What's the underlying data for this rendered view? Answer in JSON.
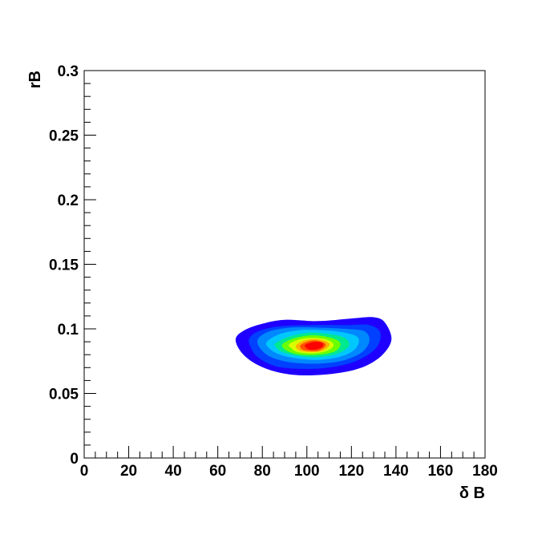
{
  "chart_data": {
    "type": "contour",
    "title": "",
    "xlabel": "δ B",
    "ylabel": "rB",
    "xlim": [
      0,
      180
    ],
    "ylim": [
      0,
      0.3
    ],
    "x_ticks": [
      0,
      20,
      40,
      60,
      80,
      100,
      120,
      140,
      160,
      180
    ],
    "x_tick_labels": [
      "0",
      "20",
      "40",
      "60",
      "80",
      "100",
      "120",
      "140",
      "160",
      "180"
    ],
    "y_ticks": [
      0,
      0.05,
      0.1,
      0.15,
      0.2,
      0.25,
      0.3
    ],
    "y_tick_labels": [
      "0",
      "0.05",
      "0.1",
      "0.15",
      "0.2",
      "0.25",
      "0.3"
    ],
    "grid": false,
    "peak": {
      "x": 103,
      "y": 0.087
    },
    "levels": [
      {
        "color": "#1f00ff",
        "outline": [
          [
            68,
            0.092
          ],
          [
            72,
            0.099
          ],
          [
            80,
            0.104
          ],
          [
            90,
            0.107
          ],
          [
            105,
            0.106
          ],
          [
            120,
            0.108
          ],
          [
            130,
            0.109
          ],
          [
            135,
            0.105
          ],
          [
            138,
            0.092
          ],
          [
            134,
            0.08
          ],
          [
            126,
            0.071
          ],
          [
            115,
            0.066
          ],
          [
            100,
            0.064
          ],
          [
            88,
            0.066
          ],
          [
            78,
            0.072
          ],
          [
            71,
            0.081
          ]
        ]
      },
      {
        "color": "#0040ff",
        "outline": [
          [
            74,
            0.092
          ],
          [
            78,
            0.098
          ],
          [
            88,
            0.102
          ],
          [
            103,
            0.103
          ],
          [
            118,
            0.103
          ],
          [
            128,
            0.103
          ],
          [
            133,
            0.097
          ],
          [
            131,
            0.085
          ],
          [
            122,
            0.075
          ],
          [
            110,
            0.07
          ],
          [
            98,
            0.069
          ],
          [
            86,
            0.071
          ],
          [
            78,
            0.078
          ],
          [
            75,
            0.085
          ]
        ]
      },
      {
        "color": "#0088ff",
        "outline": [
          [
            78,
            0.092
          ],
          [
            83,
            0.098
          ],
          [
            93,
            0.101
          ],
          [
            104,
            0.101
          ],
          [
            117,
            0.1
          ],
          [
            126,
            0.098
          ],
          [
            128,
            0.09
          ],
          [
            124,
            0.081
          ],
          [
            115,
            0.075
          ],
          [
            104,
            0.073
          ],
          [
            93,
            0.074
          ],
          [
            84,
            0.078
          ],
          [
            79,
            0.085
          ]
        ]
      },
      {
        "color": "#00c8ff",
        "outline": [
          [
            82,
            0.09
          ],
          [
            88,
            0.096
          ],
          [
            97,
            0.099
          ],
          [
            107,
            0.099
          ],
          [
            117,
            0.097
          ],
          [
            123,
            0.093
          ],
          [
            122,
            0.085
          ],
          [
            116,
            0.079
          ],
          [
            106,
            0.076
          ],
          [
            96,
            0.077
          ],
          [
            88,
            0.08
          ],
          [
            83,
            0.085
          ]
        ]
      },
      {
        "color": "#00e890",
        "outline": [
          [
            86,
            0.089
          ],
          [
            92,
            0.094
          ],
          [
            101,
            0.097
          ],
          [
            110,
            0.096
          ],
          [
            117,
            0.093
          ],
          [
            119,
            0.087
          ],
          [
            114,
            0.081
          ],
          [
            105,
            0.078
          ],
          [
            96,
            0.079
          ],
          [
            89,
            0.082
          ],
          [
            86,
            0.086
          ]
        ]
      },
      {
        "color": "#6aff00",
        "outline": [
          [
            89,
            0.088
          ],
          [
            95,
            0.093
          ],
          [
            103,
            0.095
          ],
          [
            111,
            0.093
          ],
          [
            115,
            0.089
          ],
          [
            113,
            0.083
          ],
          [
            106,
            0.08
          ],
          [
            97,
            0.08
          ],
          [
            91,
            0.083
          ]
        ]
      },
      {
        "color": "#d8ff00",
        "outline": [
          [
            92,
            0.088
          ],
          [
            97,
            0.092
          ],
          [
            104,
            0.093
          ],
          [
            110,
            0.091
          ],
          [
            112,
            0.087
          ],
          [
            109,
            0.083
          ],
          [
            103,
            0.081
          ],
          [
            96,
            0.082
          ],
          [
            93,
            0.085
          ]
        ]
      },
      {
        "color": "#ffb000",
        "outline": [
          [
            95,
            0.087
          ],
          [
            99,
            0.091
          ],
          [
            104,
            0.092
          ],
          [
            109,
            0.09
          ],
          [
            110,
            0.087
          ],
          [
            107,
            0.083
          ],
          [
            102,
            0.082
          ],
          [
            97,
            0.083
          ]
        ]
      },
      {
        "color": "#ff5000",
        "outline": [
          [
            97,
            0.087
          ],
          [
            100,
            0.09
          ],
          [
            104,
            0.091
          ],
          [
            108,
            0.089
          ],
          [
            108,
            0.086
          ],
          [
            105,
            0.083
          ],
          [
            101,
            0.083
          ],
          [
            98,
            0.084
          ]
        ]
      },
      {
        "color": "#ff0000",
        "outline": [
          [
            99,
            0.087
          ],
          [
            101,
            0.089
          ],
          [
            104,
            0.09
          ],
          [
            107,
            0.089
          ],
          [
            107,
            0.086
          ],
          [
            104,
            0.084
          ],
          [
            101,
            0.084
          ]
        ]
      }
    ]
  }
}
